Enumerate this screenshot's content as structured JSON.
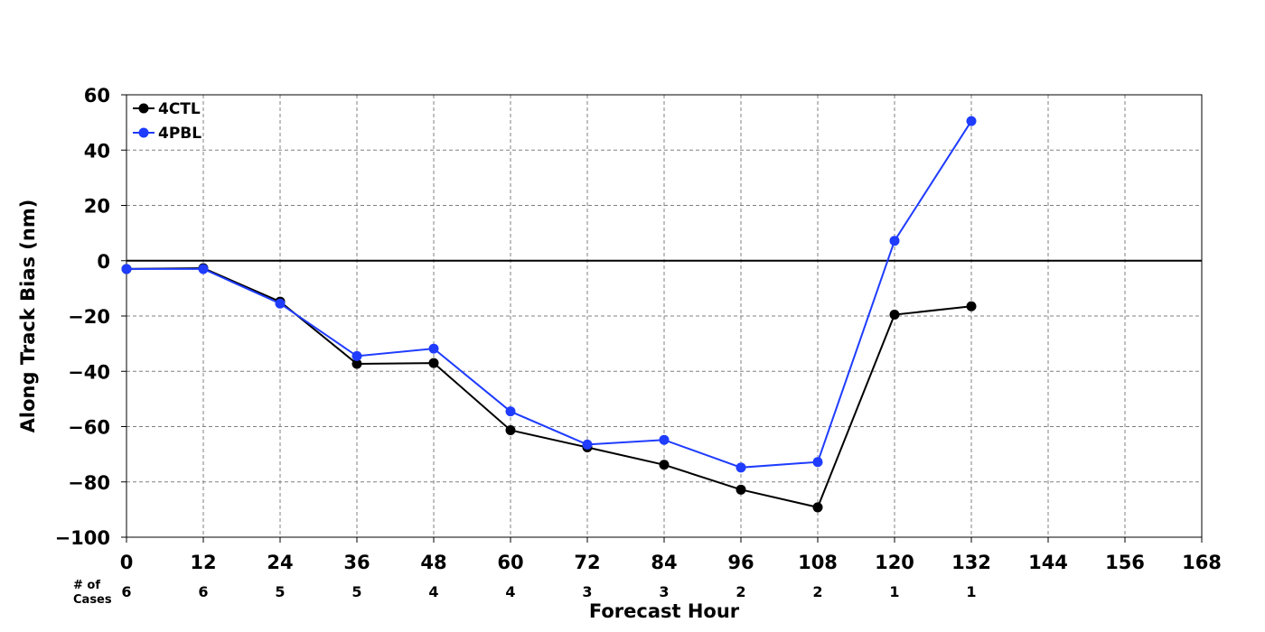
{
  "chart_data": {
    "type": "line",
    "title": "",
    "xlabel": "Forecast Hour",
    "ylabel": "Along Track Bias (nm)",
    "xlim": [
      0,
      168
    ],
    "ylim": [
      -100,
      60
    ],
    "xticks": [
      0,
      12,
      24,
      36,
      48,
      60,
      72,
      84,
      96,
      108,
      120,
      132,
      144,
      156,
      168
    ],
    "yticks": [
      60,
      40,
      20,
      0,
      -20,
      -40,
      -60,
      -80,
      -100
    ],
    "ytick_labels": [
      "60",
      "40",
      "20",
      "0",
      "−20",
      "−40",
      "−60",
      "−80",
      "−100"
    ],
    "grid": true,
    "grid_style": "dashed",
    "zero_line": true,
    "legend_position": "top-left",
    "cases_label_line1": "# of",
    "cases_label_line2": "Cases",
    "cases": [
      {
        "x": 0,
        "n": "6"
      },
      {
        "x": 12,
        "n": "6"
      },
      {
        "x": 24,
        "n": "5"
      },
      {
        "x": 36,
        "n": "5"
      },
      {
        "x": 48,
        "n": "4"
      },
      {
        "x": 60,
        "n": "4"
      },
      {
        "x": 72,
        "n": "3"
      },
      {
        "x": 84,
        "n": "3"
      },
      {
        "x": 96,
        "n": "2"
      },
      {
        "x": 108,
        "n": "2"
      },
      {
        "x": 120,
        "n": "1"
      },
      {
        "x": 132,
        "n": "1"
      }
    ],
    "x": [
      0,
      12,
      24,
      36,
      48,
      60,
      72,
      84,
      96,
      108,
      120,
      132
    ],
    "series": [
      {
        "name": "4CTL",
        "color": "#000000",
        "values": [
          -3,
          -2.7,
          -14.8,
          -37.3,
          -37,
          -61.3,
          -67.5,
          -73.8,
          -82.8,
          -89.2,
          -19.5,
          -16.5
        ]
      },
      {
        "name": "4PBL",
        "color": "#1f3cff",
        "values": [
          -3,
          -3,
          -15.5,
          -34.5,
          -31.8,
          -54.5,
          -66.5,
          -64.8,
          -74.8,
          -72.8,
          7.2,
          50.5
        ]
      }
    ]
  }
}
